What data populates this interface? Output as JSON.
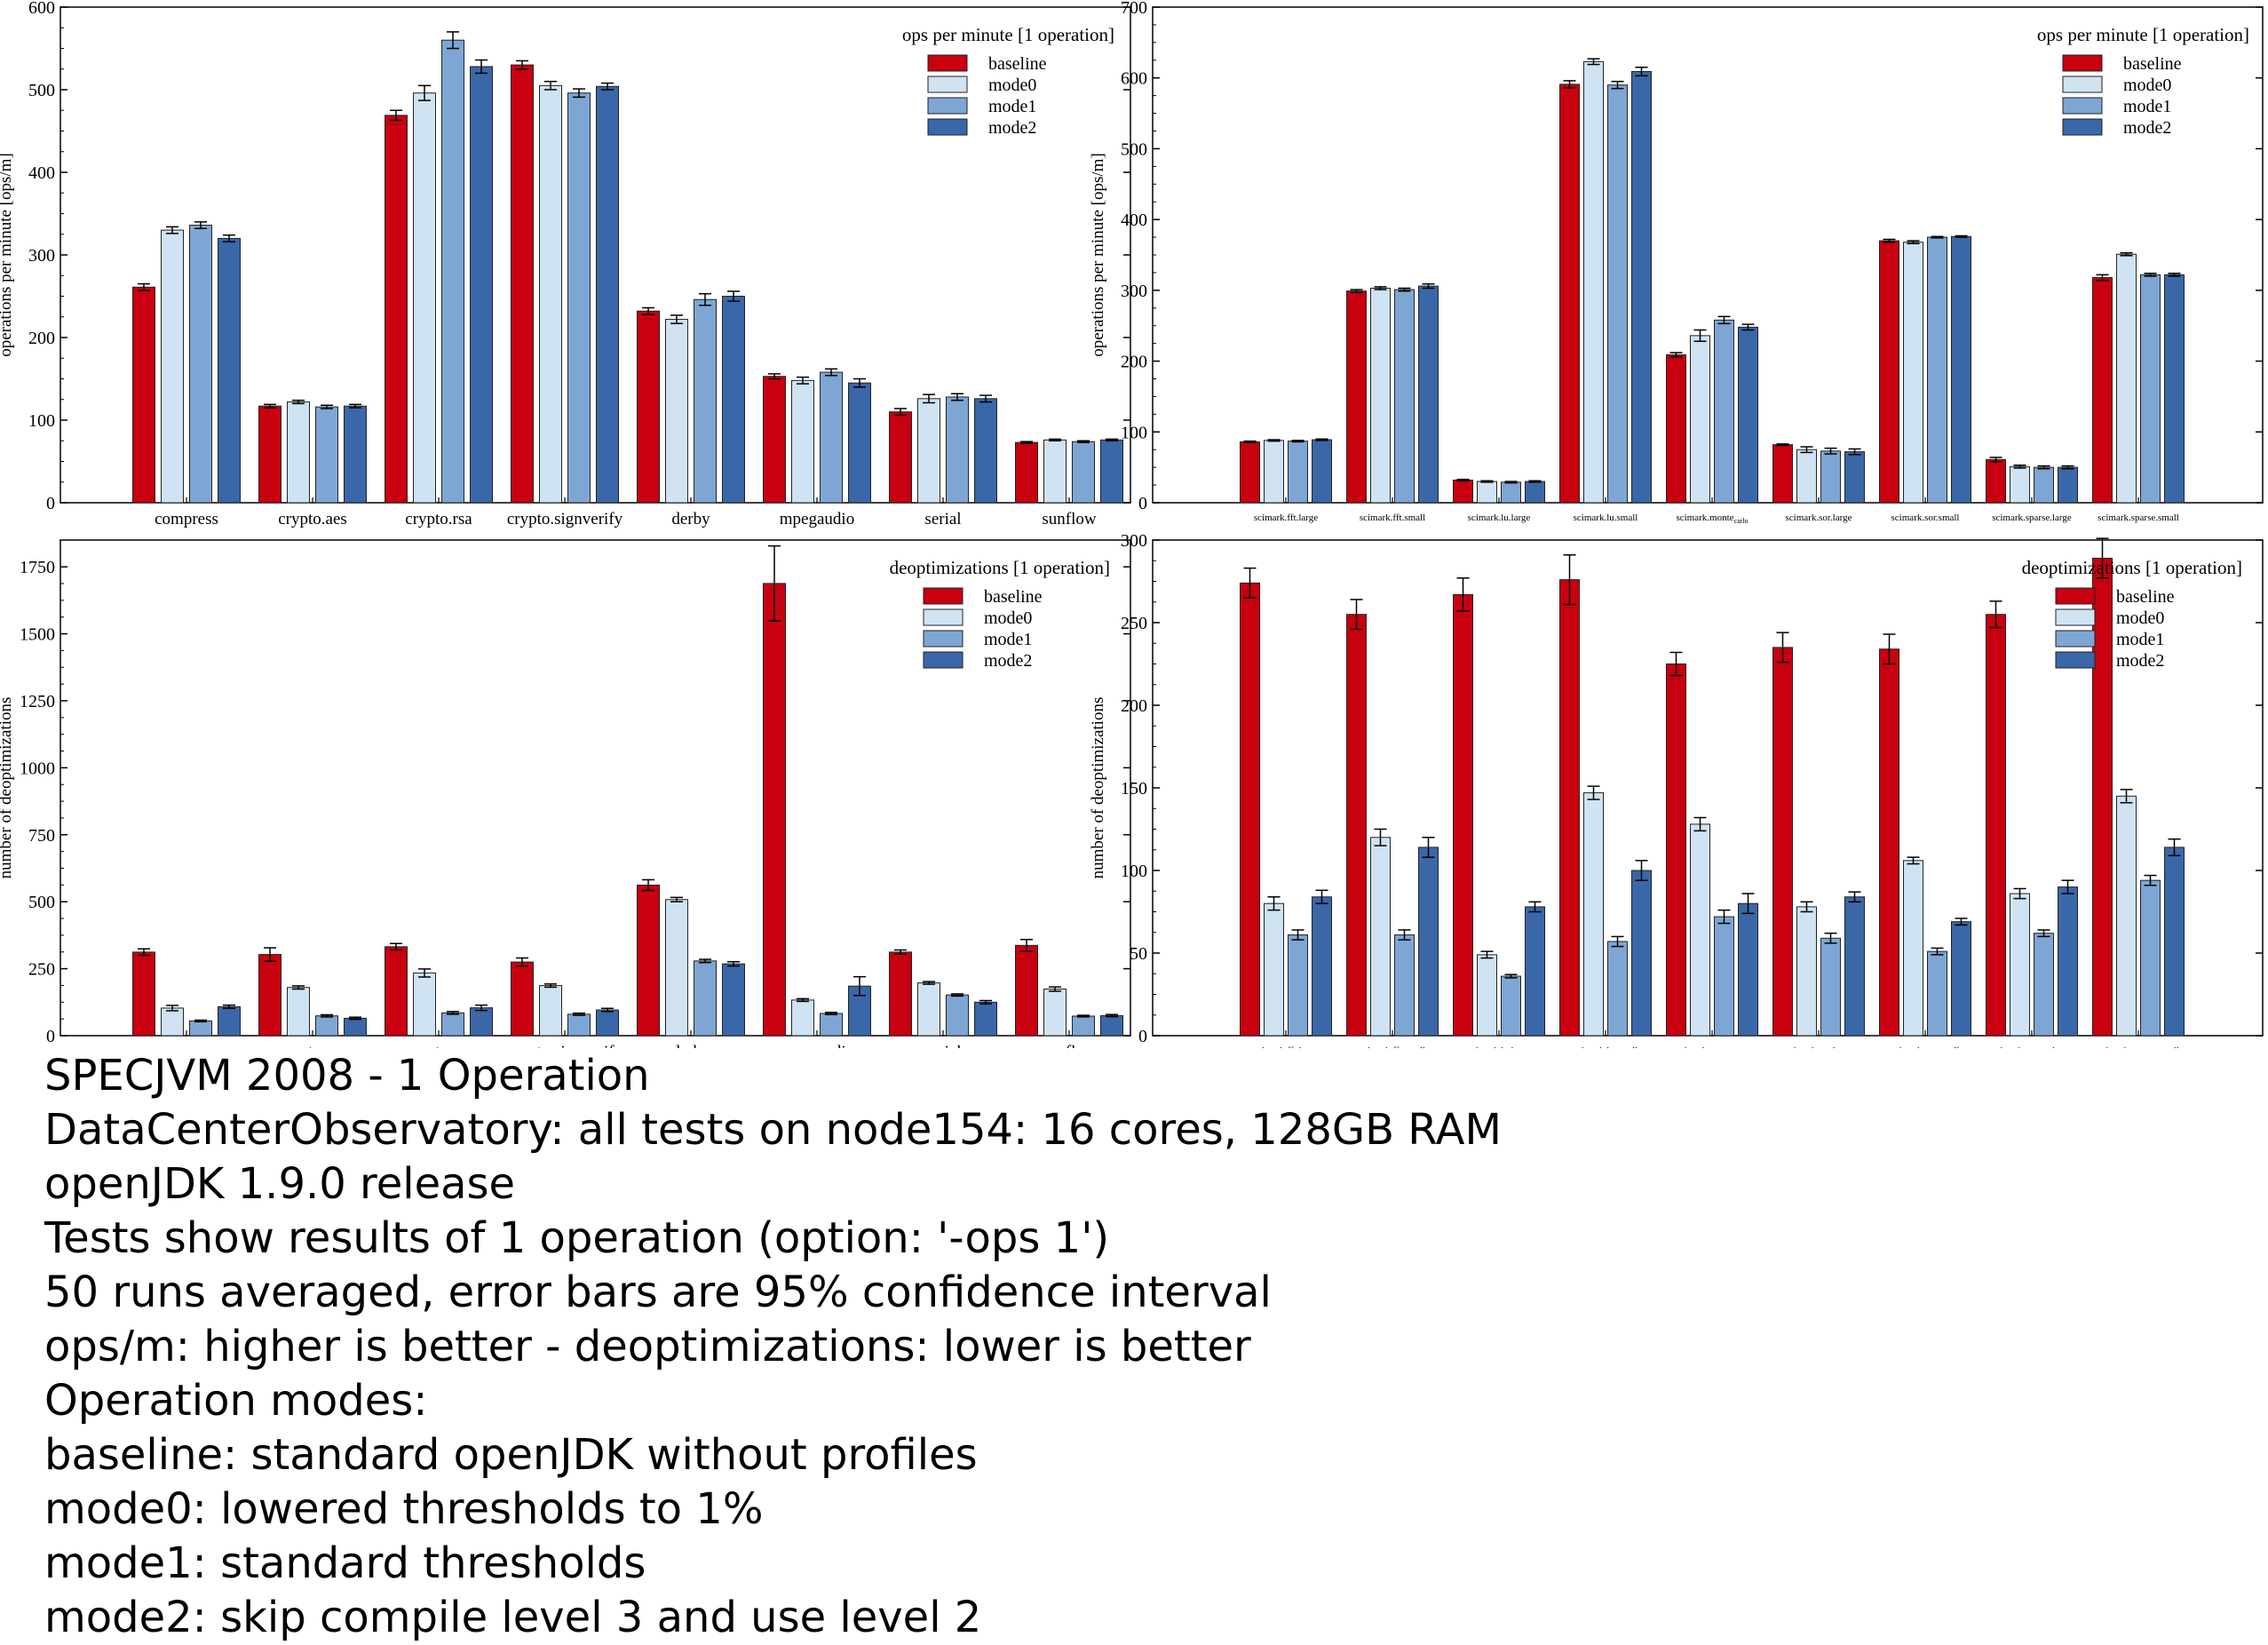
{
  "colors": {
    "baseline": "#c8000f",
    "mode0": "#cfe3f2",
    "mode1": "#7ea6d4",
    "mode2": "#3a67a8",
    "axis": "#000000"
  },
  "chart_data": [
    {
      "type": "bar",
      "title": "",
      "xlabel": "",
      "ylabel": "operations per minute [ops/m]",
      "ylim": [
        0,
        600
      ],
      "yticks": [
        "0",
        "100",
        "200",
        "300",
        "400",
        "500",
        "600"
      ],
      "legend_title": "ops per minute [1 operation]",
      "legend_position": "top-right",
      "grid": false,
      "categories": [
        "compress",
        "crypto.aes",
        "crypto.rsa",
        "crypto.signverify",
        "derby",
        "mpegaudio",
        "serial",
        "sunflow"
      ],
      "series": [
        {
          "name": "baseline",
          "values": [
            261,
            117,
            469,
            530,
            232,
            153,
            110,
            73
          ],
          "errors": [
            4,
            2,
            6,
            5,
            4,
            3,
            4,
            1
          ]
        },
        {
          "name": "mode0",
          "values": [
            330,
            122,
            496,
            505,
            222,
            148,
            126,
            76
          ],
          "errors": [
            4,
            2,
            9,
            5,
            5,
            4,
            5,
            1
          ]
        },
        {
          "name": "mode1",
          "values": [
            336,
            116,
            560,
            496,
            246,
            158,
            128,
            74
          ],
          "errors": [
            4,
            2,
            10,
            5,
            7,
            4,
            4,
            1
          ]
        },
        {
          "name": "mode2",
          "values": [
            320,
            117,
            528,
            504,
            250,
            145,
            126,
            76
          ],
          "errors": [
            4,
            2,
            8,
            4,
            6,
            5,
            4,
            1
          ]
        }
      ]
    },
    {
      "type": "bar",
      "title": "",
      "xlabel": "",
      "ylabel": "operations per minute [ops/m]",
      "ylim": [
        0,
        700
      ],
      "yticks": [
        "0",
        "100",
        "200",
        "300",
        "400",
        "500",
        "600",
        "700"
      ],
      "legend_title": "ops per minute [1 operation]",
      "legend_position": "top-right",
      "grid": false,
      "categories": [
        "scimark.fft.large",
        "scimark.fft.small",
        "scimark.lu.large",
        "scimark.lu.small",
        "scimark.monte",
        "scimark.sor.large",
        "scimark.sor.small",
        "scimark.sparse.large",
        "scimark.sparse.small"
      ],
      "category_subscripts": [
        "",
        "",
        "",
        "",
        "carlo",
        "",
        "",
        "",
        ""
      ],
      "series": [
        {
          "name": "baseline",
          "values": [
            86,
            299,
            32,
            591,
            209,
            82,
            370,
            61,
            318
          ],
          "errors": [
            1,
            2,
            1,
            5,
            3,
            1,
            2,
            3,
            4
          ]
        },
        {
          "name": "mode0",
          "values": [
            88,
            303,
            30,
            623,
            236,
            75,
            368,
            51,
            351
          ],
          "errors": [
            1,
            2,
            1,
            4,
            8,
            4,
            2,
            2,
            2
          ]
        },
        {
          "name": "mode1",
          "values": [
            87,
            301,
            29,
            590,
            258,
            73,
            375,
            50,
            322
          ],
          "errors": [
            1,
            2,
            1,
            5,
            5,
            4,
            1,
            2,
            2
          ]
        },
        {
          "name": "mode2",
          "values": [
            89,
            306,
            30,
            609,
            248,
            72,
            376,
            50,
            322
          ],
          "errors": [
            1,
            3,
            1,
            6,
            4,
            4,
            1,
            2,
            2
          ]
        }
      ]
    },
    {
      "type": "bar",
      "title": "",
      "xlabel": "",
      "ylabel": "number of deoptimizations",
      "ylim": [
        0,
        1850
      ],
      "yticks": [
        "0",
        "250",
        "500",
        "750",
        "1000",
        "1250",
        "1500",
        "1750"
      ],
      "legend_title": "deoptimizations [1 operation]",
      "legend_position": "top-right",
      "grid": false,
      "categories": [
        "compress",
        "crypto.aes",
        "crypto.rsa",
        "crypto.signverify",
        "derby",
        "mpegaudio",
        "serial",
        "sunflow"
      ],
      "series": [
        {
          "name": "baseline",
          "values": [
            312,
            303,
            332,
            275,
            562,
            1688,
            312,
            337
          ],
          "errors": [
            12,
            25,
            12,
            15,
            20,
            140,
            8,
            22
          ]
        },
        {
          "name": "mode0",
          "values": [
            103,
            180,
            234,
            187,
            508,
            133,
            197,
            174
          ],
          "errors": [
            10,
            6,
            15,
            6,
            8,
            5,
            5,
            8
          ]
        },
        {
          "name": "mode1",
          "values": [
            55,
            74,
            85,
            80,
            279,
            83,
            152,
            73
          ],
          "errors": [
            3,
            4,
            5,
            4,
            6,
            4,
            4,
            3
          ]
        },
        {
          "name": "mode2",
          "values": [
            108,
            65,
            104,
            96,
            268,
            185,
            125,
            75
          ],
          "errors": [
            6,
            4,
            10,
            6,
            8,
            35,
            6,
            4
          ]
        }
      ]
    },
    {
      "type": "bar",
      "title": "",
      "xlabel": "",
      "ylabel": "number of deoptimizations",
      "ylim": [
        0,
        300
      ],
      "yticks": [
        "0",
        "50",
        "100",
        "150",
        "200",
        "250",
        "300"
      ],
      "legend_title": "deoptimizations [1 operation]",
      "legend_position": "top-right",
      "grid": false,
      "categories": [
        "scimark.fft.large",
        "scimark.fft.small",
        "scimark.lu.large",
        "scimark.lu.small",
        "scimark.monte",
        "scimark.sor.large",
        "scimark.sor.small",
        "scimark.sparse.large",
        "scimark.sparse.small"
      ],
      "category_subscripts": [
        "",
        "",
        "",
        "",
        "carlo",
        "",
        "",
        "",
        ""
      ],
      "series": [
        {
          "name": "baseline",
          "values": [
            274,
            255,
            267,
            276,
            225,
            235,
            234,
            255,
            289
          ],
          "errors": [
            9,
            9,
            10,
            15,
            7,
            9,
            9,
            8,
            12
          ]
        },
        {
          "name": "mode0",
          "values": [
            80,
            120,
            49,
            147,
            128,
            78,
            106,
            86,
            145
          ],
          "errors": [
            4,
            5,
            2,
            4,
            4,
            3,
            2,
            3,
            4
          ]
        },
        {
          "name": "mode1",
          "values": [
            61,
            61,
            36,
            57,
            72,
            59,
            51,
            62,
            94
          ],
          "errors": [
            3,
            3,
            1,
            3,
            4,
            3,
            2,
            2,
            3
          ]
        },
        {
          "name": "mode2",
          "values": [
            84,
            114,
            78,
            100,
            80,
            84,
            69,
            90,
            114
          ],
          "errors": [
            4,
            6,
            3,
            6,
            6,
            3,
            2,
            4,
            5
          ]
        }
      ]
    }
  ],
  "notes": [
    "SPECJVM 2008 - 1 Operation",
    "DataCenterObservatory: all tests on node154: 16 cores, 128GB RAM",
    "openJDK 1.9.0 release",
    "Tests show results of 1 operation (option: '-ops 1')",
    "50 runs averaged, error bars are 95% confidence interval",
    "ops/m: higher is better - deoptimizations: lower is better",
    "Operation modes:",
    "baseline: standard openJDK without profiles",
    "mode0: lowered thresholds to 1%",
    "mode1: standard thresholds",
    "mode2: skip compile level 3 and use level 2"
  ]
}
